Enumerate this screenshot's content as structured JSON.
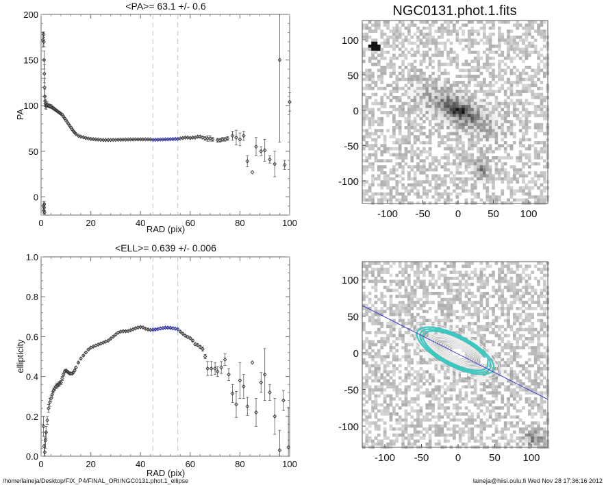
{
  "footer": {
    "path": "/home/laineja/Desktop/FIX_P4/FINAL_ORI/NGC0131.phot.1_ellipse",
    "stamp": "laineja@hiisi.oulu.fi  Wed Nov 28 17:36:16 2012"
  },
  "colors": {
    "points": "#333333",
    "fit": "#2020c0",
    "range_lines": "#7fdfe8",
    "contour_teal": "#3cc8c0",
    "major_axis": "#4040d0"
  },
  "chart_data": [
    {
      "type": "scatter",
      "title": "<PA>=  63.1 +/-   0.6",
      "xlabel": "RAD (pix)",
      "ylabel": "PA",
      "xlim": [
        0,
        100
      ],
      "ylim": [
        -20,
        200
      ],
      "xticks": [
        "0",
        "20",
        "40",
        "60",
        "80",
        "100"
      ],
      "yticks": [
        "0",
        "50",
        "100",
        "150",
        "200"
      ],
      "fit_range": [
        45,
        55
      ],
      "r": [
        0.8,
        1.0,
        1.1,
        1.2,
        1.3,
        1.4,
        1.5,
        1.6,
        1.8,
        2.0,
        2.5,
        3,
        3.5,
        4,
        4.5,
        5,
        5.5,
        6,
        6.5,
        7,
        7.5,
        8,
        8.5,
        9,
        9.5,
        10,
        10.5,
        11,
        11.5,
        12,
        12.5,
        13,
        13.5,
        14,
        15,
        16,
        17,
        18,
        19,
        20,
        21,
        22,
        23,
        24,
        25,
        26,
        27,
        28,
        29,
        30,
        31,
        32,
        33,
        34,
        35,
        36,
        37,
        38,
        39,
        40,
        41,
        42,
        43,
        44,
        45,
        46,
        47,
        48,
        49,
        50,
        51,
        52,
        53,
        54,
        55,
        56,
        57,
        58,
        59,
        60,
        61,
        62,
        63,
        64,
        65,
        66,
        67,
        68,
        69,
        71,
        72,
        73,
        74,
        75,
        77,
        78.5,
        80,
        81.5,
        83,
        85,
        86.5,
        88.5,
        90,
        92,
        94,
        96,
        98,
        100
      ],
      "pa": [
        172,
        178,
        170,
        150,
        135,
        120,
        110,
        105,
        102,
        100,
        101,
        100,
        99.5,
        99,
        98,
        97,
        96,
        95,
        94,
        93,
        92,
        91,
        90,
        88,
        86,
        84,
        82,
        80,
        78,
        76,
        74,
        72,
        70.5,
        69,
        67,
        66,
        65.3,
        64.5,
        64,
        63.5,
        63.2,
        63,
        62.8,
        62.5,
        62.4,
        62.3,
        62.3,
        62.4,
        62.5,
        62.5,
        62.6,
        62.7,
        62.7,
        62.8,
        62.8,
        62.9,
        62.9,
        63,
        63,
        63,
        63,
        63,
        63,
        63,
        62.5,
        62.6,
        62.7,
        62.8,
        62.9,
        63,
        63.1,
        63.2,
        63.3,
        63.4,
        63.5,
        64,
        64.5,
        65,
        65,
        64.5,
        65,
        65,
        66,
        66,
        65,
        64,
        64,
        64,
        63,
        62,
        62,
        63,
        63,
        64,
        67,
        65,
        63,
        67,
        39,
        27,
        55,
        50,
        51,
        41,
        36,
        150,
        35,
        104
      ],
      "err": [
        8,
        3,
        5,
        10,
        10,
        10,
        8,
        6,
        5,
        4,
        3,
        2,
        2,
        2,
        1.5,
        1.5,
        1.2,
        1,
        1,
        1,
        1,
        1,
        1,
        1,
        1,
        1,
        1,
        1,
        1,
        1,
        0.8,
        0.8,
        0.6,
        0.5,
        0.5,
        0.4,
        0.4,
        0.3,
        0.3,
        0.3,
        0.3,
        0.3,
        0.3,
        0.3,
        0.3,
        0.3,
        0.3,
        0.3,
        0.3,
        0.3,
        0.3,
        0.3,
        0.3,
        0.3,
        0.3,
        0.3,
        0.3,
        0.3,
        0.3,
        0.3,
        0.3,
        0.3,
        0.3,
        0.3,
        0.3,
        0.3,
        0.3,
        0.3,
        0.3,
        0.3,
        0.3,
        0.3,
        0.3,
        0.3,
        0.3,
        0.5,
        0.5,
        0.5,
        0.5,
        0.5,
        0.6,
        0.6,
        0.8,
        1,
        1,
        2,
        3,
        3,
        2,
        2,
        2,
        2,
        2,
        2,
        5,
        8,
        7,
        5,
        6,
        0,
        10,
        5,
        12,
        4,
        14,
        90,
        5,
        10
      ],
      "inner_wrapped": {
        "r": [
          1.0,
          1.1,
          1.2,
          1.3,
          1.4
        ],
        "pa": [
          -10,
          -15,
          -12,
          -8,
          -17
        ],
        "err": [
          5,
          3,
          4,
          3,
          2
        ]
      }
    },
    {
      "type": "scatter",
      "title": "<ELL>= 0.639 +/-  0.006",
      "xlabel": "RAD (pix)",
      "ylabel": "ellipticity",
      "xlim": [
        0,
        100
      ],
      "ylim": [
        0,
        1
      ],
      "xticks": [
        "0",
        "20",
        "40",
        "60",
        "80",
        "100"
      ],
      "yticks": [
        "0.0",
        "0.2",
        "0.4",
        "0.6",
        "0.8",
        "1.0"
      ],
      "fit_range": [
        45,
        55
      ],
      "r": [
        1,
        1.2,
        1.5,
        1.8,
        2,
        2.5,
        3,
        3.5,
        4,
        4.5,
        5,
        5.5,
        6,
        6.5,
        7,
        7.5,
        8,
        8.5,
        9,
        9.5,
        10,
        10.5,
        11,
        11.5,
        12,
        12.5,
        13,
        13.5,
        14,
        15,
        16,
        17,
        18,
        19,
        20,
        21,
        22,
        23,
        24,
        25,
        26,
        27,
        28,
        29,
        30,
        31,
        32,
        33,
        34,
        35,
        36,
        37,
        38,
        39,
        40,
        41,
        42,
        43,
        44,
        45,
        46,
        47,
        48,
        49,
        50,
        51,
        52,
        53,
        54,
        55,
        56,
        57,
        58,
        59,
        60,
        61,
        62,
        63,
        64,
        65,
        66,
        67,
        68.5,
        70,
        71,
        72.5,
        74,
        75.5,
        77,
        78.5,
        80,
        81.5,
        83,
        85,
        86.5,
        88.5,
        90,
        92,
        94,
        96,
        97.5,
        99.5
      ],
      "ell": [
        0.15,
        0.05,
        0.02,
        0.08,
        0.12,
        0.18,
        0.24,
        0.27,
        0.29,
        0.31,
        0.33,
        0.34,
        0.35,
        0.355,
        0.36,
        0.365,
        0.37,
        0.39,
        0.41,
        0.425,
        0.43,
        0.425,
        0.42,
        0.415,
        0.415,
        0.415,
        0.42,
        0.43,
        0.445,
        0.47,
        0.49,
        0.505,
        0.52,
        0.535,
        0.545,
        0.55,
        0.555,
        0.56,
        0.565,
        0.57,
        0.575,
        0.58,
        0.59,
        0.6,
        0.61,
        0.62,
        0.625,
        0.627,
        0.627,
        0.628,
        0.632,
        0.637,
        0.642,
        0.646,
        0.648,
        0.646,
        0.64,
        0.636,
        0.634,
        0.635,
        0.636,
        0.638,
        0.641,
        0.643,
        0.645,
        0.645,
        0.644,
        0.642,
        0.64,
        0.637,
        0.625,
        0.615,
        0.605,
        0.598,
        0.592,
        0.58,
        0.562,
        0.558,
        0.548,
        0.538,
        0.5,
        0.44,
        0.44,
        0.44,
        0.425,
        0.445,
        0.485,
        0.41,
        0.315,
        0.26,
        0.38,
        0.35,
        0.25,
        0.47,
        0.22,
        0.37,
        0.41,
        0.32,
        0.2,
        0.03,
        0.28,
        0.045
      ],
      "err": [
        0.05,
        0.05,
        0.04,
        0.04,
        0.03,
        0.02,
        0.02,
        0.02,
        0.015,
        0.015,
        0.012,
        0.012,
        0.012,
        0.012,
        0.012,
        0.012,
        0.01,
        0.01,
        0.008,
        0.008,
        0.006,
        0.006,
        0.005,
        0.005,
        0.005,
        0.005,
        0.004,
        0.004,
        0.004,
        0.003,
        0.003,
        0.003,
        0.003,
        0.003,
        0.003,
        0.003,
        0.003,
        0.003,
        0.003,
        0.003,
        0.003,
        0.003,
        0.003,
        0.003,
        0.003,
        0.003,
        0.003,
        0.003,
        0.003,
        0.003,
        0.003,
        0.003,
        0.003,
        0.003,
        0.003,
        0.003,
        0.003,
        0.003,
        0.003,
        0.003,
        0.003,
        0.003,
        0.003,
        0.003,
        0.003,
        0.003,
        0.003,
        0.003,
        0.003,
        0.003,
        0.004,
        0.004,
        0.004,
        0.005,
        0.005,
        0.005,
        0.006,
        0.006,
        0.008,
        0.01,
        0.01,
        0.035,
        0.035,
        0.03,
        0.025,
        0.03,
        0.03,
        0.03,
        0.045,
        0.065,
        0.09,
        0.06,
        0.045,
        0,
        0.07,
        0.05,
        0.13,
        0.04,
        0.09,
        0.1,
        0.05,
        0.2
      ]
    },
    {
      "type": "heatmap",
      "title": "NGC0131.phot.1.fits",
      "xlim": [
        -130,
        130
      ],
      "ylim": [
        -130,
        130
      ],
      "xticks": [
        "-100",
        "-50",
        "0",
        "50",
        "100"
      ],
      "yticks": [
        "-100",
        "-50",
        "0",
        "50",
        "100"
      ]
    },
    {
      "type": "heatmap",
      "title": "",
      "xlim": [
        -130,
        130
      ],
      "ylim": [
        -130,
        130
      ],
      "xticks": [
        "-100",
        "-50",
        "0",
        "50",
        "100"
      ],
      "yticks": [
        "-100",
        "-50",
        "0",
        "50",
        "100"
      ],
      "position_angle": 63.1,
      "ellipticity": 0.639
    }
  ]
}
